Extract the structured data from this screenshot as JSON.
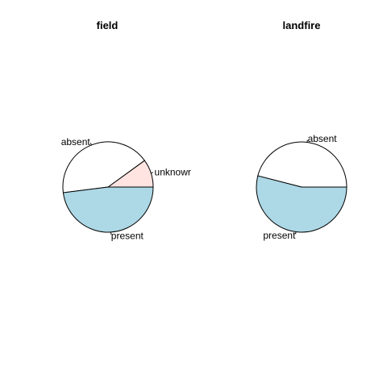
{
  "chart_data": [
    {
      "type": "pie",
      "title": "field",
      "slices": [
        {
          "label": "unknowr",
          "value": 0.1,
          "color": "#FFE4E1"
        },
        {
          "label": "absent",
          "value": 0.42,
          "color": "#FFFFFF"
        },
        {
          "label": "present",
          "value": 0.48,
          "color": "#ADD8E6"
        }
      ]
    },
    {
      "type": "pie",
      "title": "landfire",
      "slices": [
        {
          "label": "absent",
          "value": 0.46,
          "color": "#FFFFFF"
        },
        {
          "label": "present",
          "value": 0.54,
          "color": "#ADD8E6"
        }
      ]
    }
  ]
}
